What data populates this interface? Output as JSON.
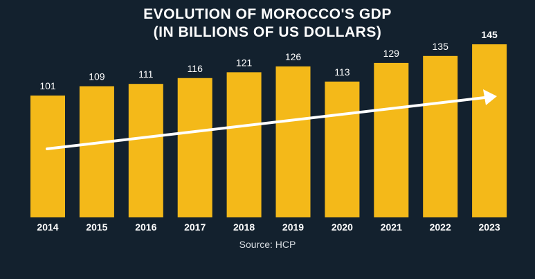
{
  "chart_data": {
    "type": "bar",
    "title_line1": "EVOLUTION OF MOROCCO'S GDP",
    "title_line2": "(IN BILLIONS OF US DOLLARS)",
    "categories": [
      "2014",
      "2015",
      "2016",
      "2017",
      "2018",
      "2019",
      "2020",
      "2021",
      "2022",
      "2023"
    ],
    "values": [
      101,
      109,
      111,
      116,
      121,
      126,
      113,
      129,
      135,
      145
    ],
    "value_labels": [
      "101",
      "109",
      "111",
      "116",
      "121",
      "126",
      "113",
      "129",
      "135",
      "145"
    ],
    "highlight_last_label": true,
    "trend_arrow": true,
    "source": "Source: HCP",
    "colors": {
      "background": "#13212e",
      "bar": "#f4b919",
      "text": "#ffffff",
      "arrow": "#ffffff"
    }
  }
}
